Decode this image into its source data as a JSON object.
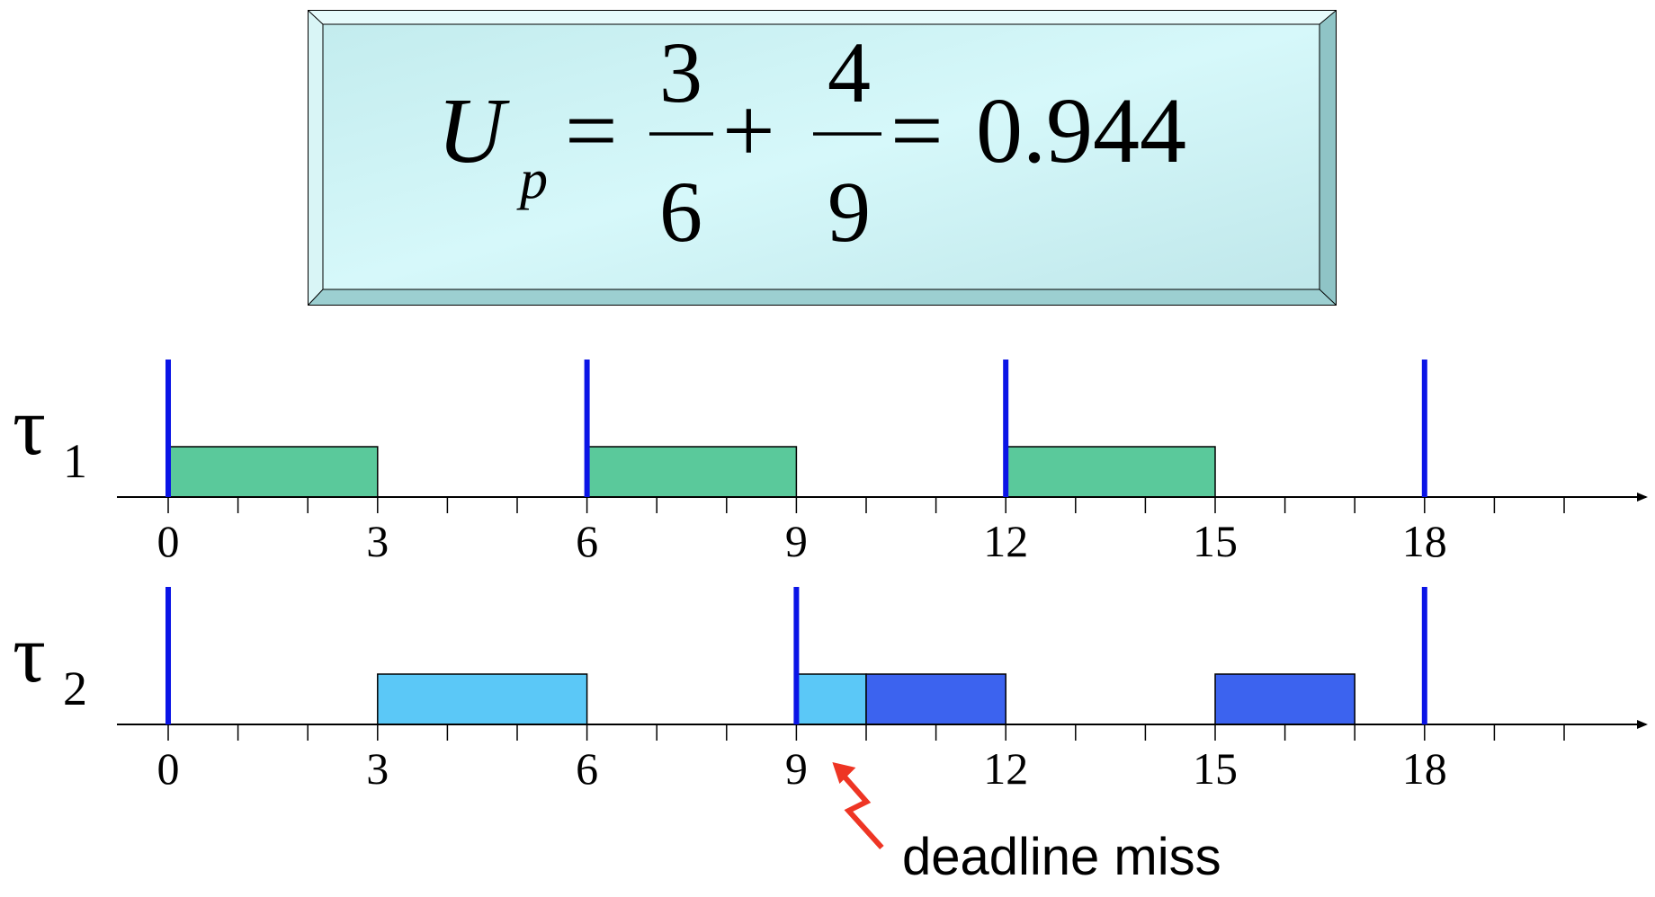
{
  "formula": {
    "lhs_symbol": "U",
    "lhs_subscript": "p",
    "equals_1": "=",
    "frac1_num": "3",
    "frac1_den": "6",
    "plus": "+",
    "frac2_num": "4",
    "frac2_den": "9",
    "equals_2": "=",
    "result": "0.944"
  },
  "tasks": [
    {
      "symbol": "τ",
      "index": "1",
      "ticks": [
        "0",
        "3",
        "6",
        "9",
        "12",
        "15",
        "18"
      ],
      "releases": [
        0,
        6,
        12,
        18
      ],
      "executions": [
        {
          "start": 0,
          "end": 3,
          "kind": "normal"
        },
        {
          "start": 6,
          "end": 9,
          "kind": "normal"
        },
        {
          "start": 12,
          "end": 15,
          "kind": "normal"
        }
      ]
    },
    {
      "symbol": "τ",
      "index": "2",
      "ticks": [
        "0",
        "3",
        "6",
        "9",
        "12",
        "15",
        "18"
      ],
      "releases": [
        0,
        9,
        18
      ],
      "executions": [
        {
          "start": 3,
          "end": 6,
          "kind": "normal"
        },
        {
          "start": 9,
          "end": 10,
          "kind": "normal"
        },
        {
          "start": 10,
          "end": 12,
          "kind": "overrun"
        },
        {
          "start": 15,
          "end": 17,
          "kind": "overrun"
        }
      ]
    }
  ],
  "annotation": {
    "text": "deadline miss",
    "at_time": 9
  },
  "colors": {
    "task1_fill": "#5ac99b",
    "task2_fill": "#5bc8f7",
    "overrun_fill": "#3c63ef",
    "release_line": "#0a14e6",
    "arrow": "#ee3524",
    "formula_bg": "#c5eef0"
  }
}
